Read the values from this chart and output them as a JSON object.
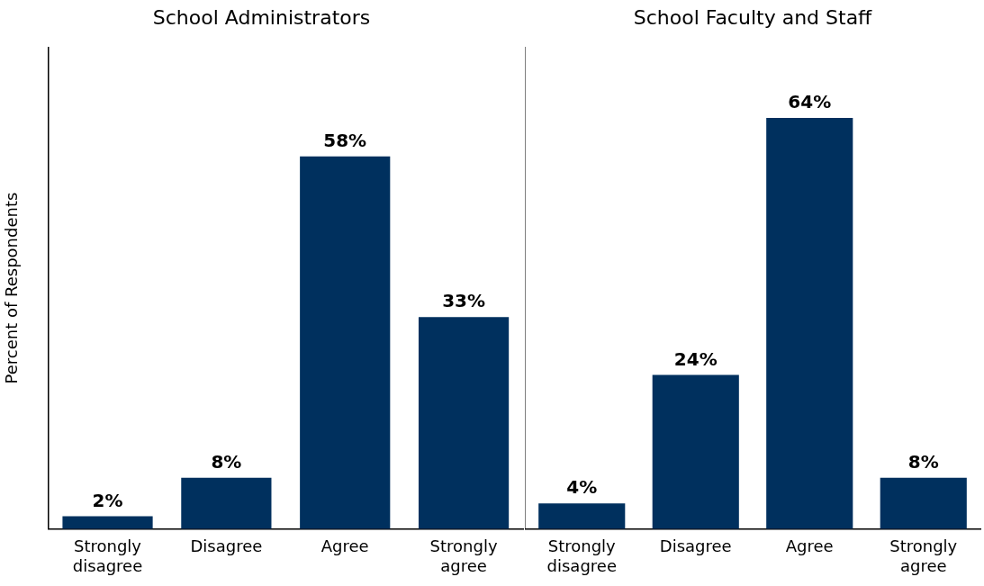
{
  "chart_data": [
    {
      "type": "bar",
      "title": "School Administrators",
      "ylabel": "Percent of Respondents",
      "categories": [
        "Strongly disagree",
        "Disagree",
        "Agree",
        "Strongly agree"
      ],
      "values": [
        2,
        8,
        58,
        33
      ],
      "value_labels": [
        "2%",
        "8%",
        "58%",
        "33%"
      ],
      "color": "#00305e",
      "ylim": [
        0,
        75
      ],
      "grid": false,
      "legend": false
    },
    {
      "type": "bar",
      "title": "School Faculty and Staff",
      "categories": [
        "Strongly disagree",
        "Disagree",
        "Agree",
        "Strongly agree"
      ],
      "values": [
        4,
        24,
        64,
        8
      ],
      "value_labels": [
        "4%",
        "24%",
        "64%",
        "8%"
      ],
      "color": "#00305e",
      "ylim": [
        0,
        75
      ],
      "grid": false,
      "legend": false
    }
  ]
}
